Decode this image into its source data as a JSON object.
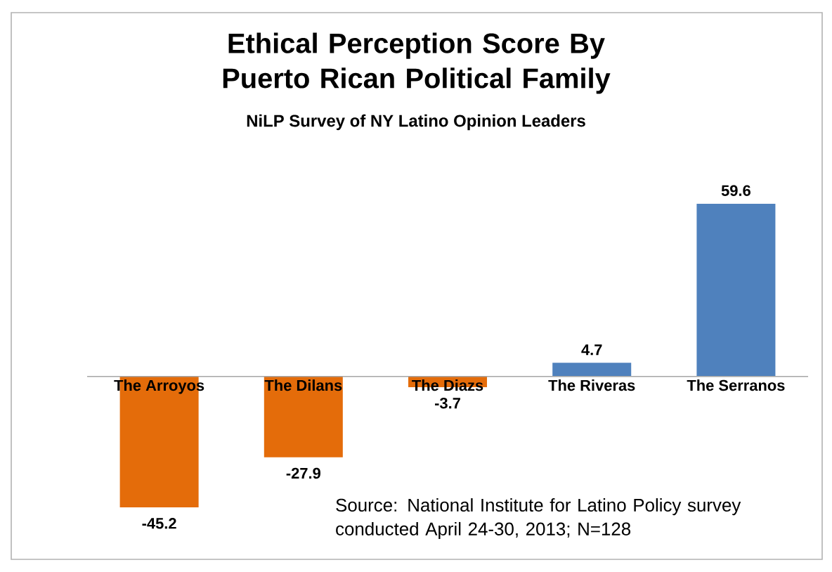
{
  "chart_data": {
    "type": "bar",
    "title": "Ethical Perception Score By Puerto Rican Political Family",
    "subtitle": "NiLP Survey of NY Latino Opinion Leaders",
    "categories": [
      "The Arroyos",
      "The Dilans",
      "The Diazs",
      "The Riveras",
      "The Serranos"
    ],
    "values": [
      -45.2,
      -27.9,
      -3.7,
      4.7,
      59.6
    ],
    "colors": [
      "#e46c0a",
      "#e46c0a",
      "#e46c0a",
      "#4f81bd",
      "#4f81bd"
    ],
    "data_labels": true,
    "annotations": [
      "Source: National Institute for Latino Policy survey conducted April 24-30, 2013;  N=128"
    ]
  }
}
